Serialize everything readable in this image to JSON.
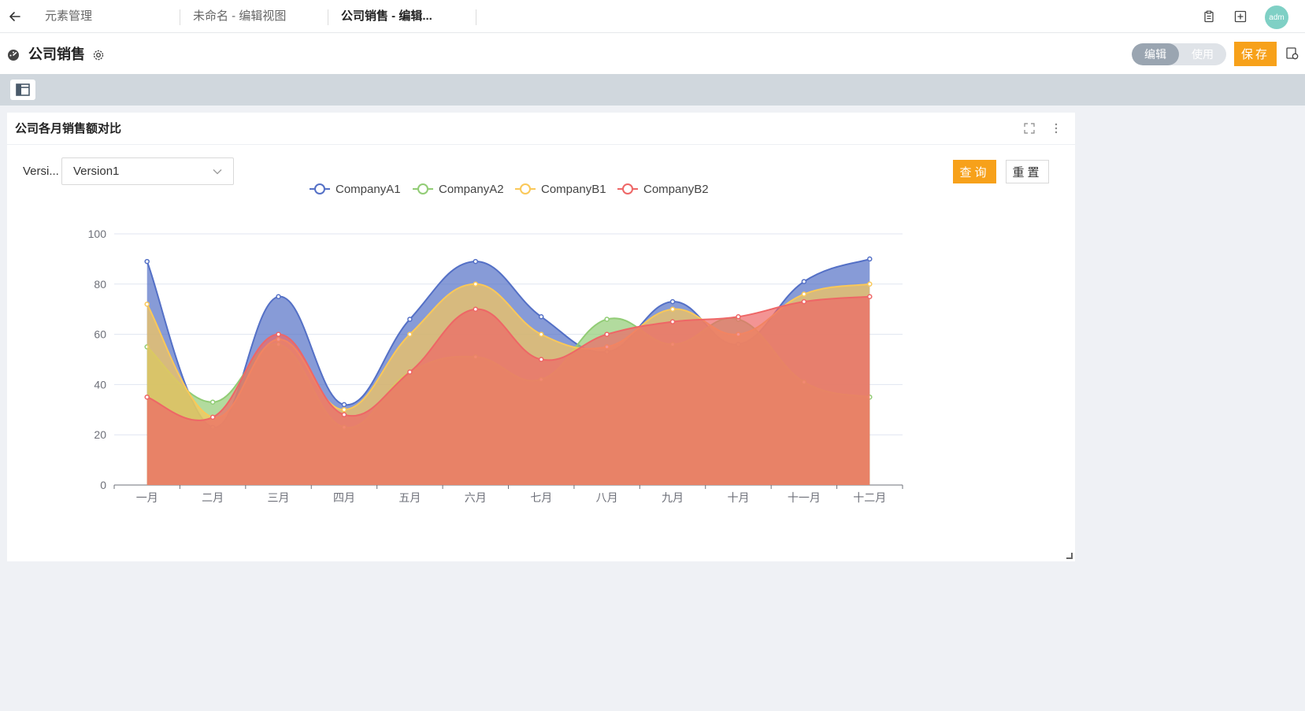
{
  "tabs": [
    {
      "label": "元素管理"
    },
    {
      "label": "未命名 - 编辑视图"
    },
    {
      "label": "公司销售 - 编辑..."
    }
  ],
  "user": {
    "avatar_text": "adm"
  },
  "header": {
    "title": "公司销售",
    "mode_edit": "编辑",
    "mode_use": "使用",
    "save_label": "保存"
  },
  "widget": {
    "title": "公司各月销售额对比",
    "filter_label": "Versi...",
    "filter_value": "Version1",
    "query_label": "查询",
    "reset_label": "重置"
  },
  "colors": {
    "accent": "#f7a11a",
    "CompanyA1": "#5470c6",
    "CompanyA2": "#91cc75",
    "CompanyB1": "#fac858",
    "CompanyB2": "#ee6666"
  },
  "chart_data": {
    "type": "area",
    "smooth": true,
    "categories": [
      "一月",
      "二月",
      "三月",
      "四月",
      "五月",
      "六月",
      "七月",
      "八月",
      "九月",
      "十月",
      "十一月",
      "十二月"
    ],
    "ylim": [
      0,
      100
    ],
    "yticks": [
      0,
      20,
      40,
      60,
      80,
      100
    ],
    "grid": true,
    "legend_position": "top-center",
    "series": [
      {
        "name": "CompanyA1",
        "color": "#5470c6",
        "values": [
          89,
          23,
          75,
          32,
          66,
          89,
          67,
          53,
          73,
          56,
          81,
          90
        ]
      },
      {
        "name": "CompanyA2",
        "color": "#91cc75",
        "values": [
          55,
          33,
          56,
          23,
          45,
          51,
          42,
          66,
          56,
          66,
          41,
          35
        ]
      },
      {
        "name": "CompanyB1",
        "color": "#fac858",
        "values": [
          72,
          27,
          58,
          30,
          60,
          80,
          60,
          55,
          70,
          60,
          76,
          80
        ]
      },
      {
        "name": "CompanyB2",
        "color": "#ee6666",
        "values": [
          35,
          27,
          60,
          28,
          45,
          70,
          50,
          60,
          65,
          67,
          73,
          75
        ]
      }
    ]
  }
}
